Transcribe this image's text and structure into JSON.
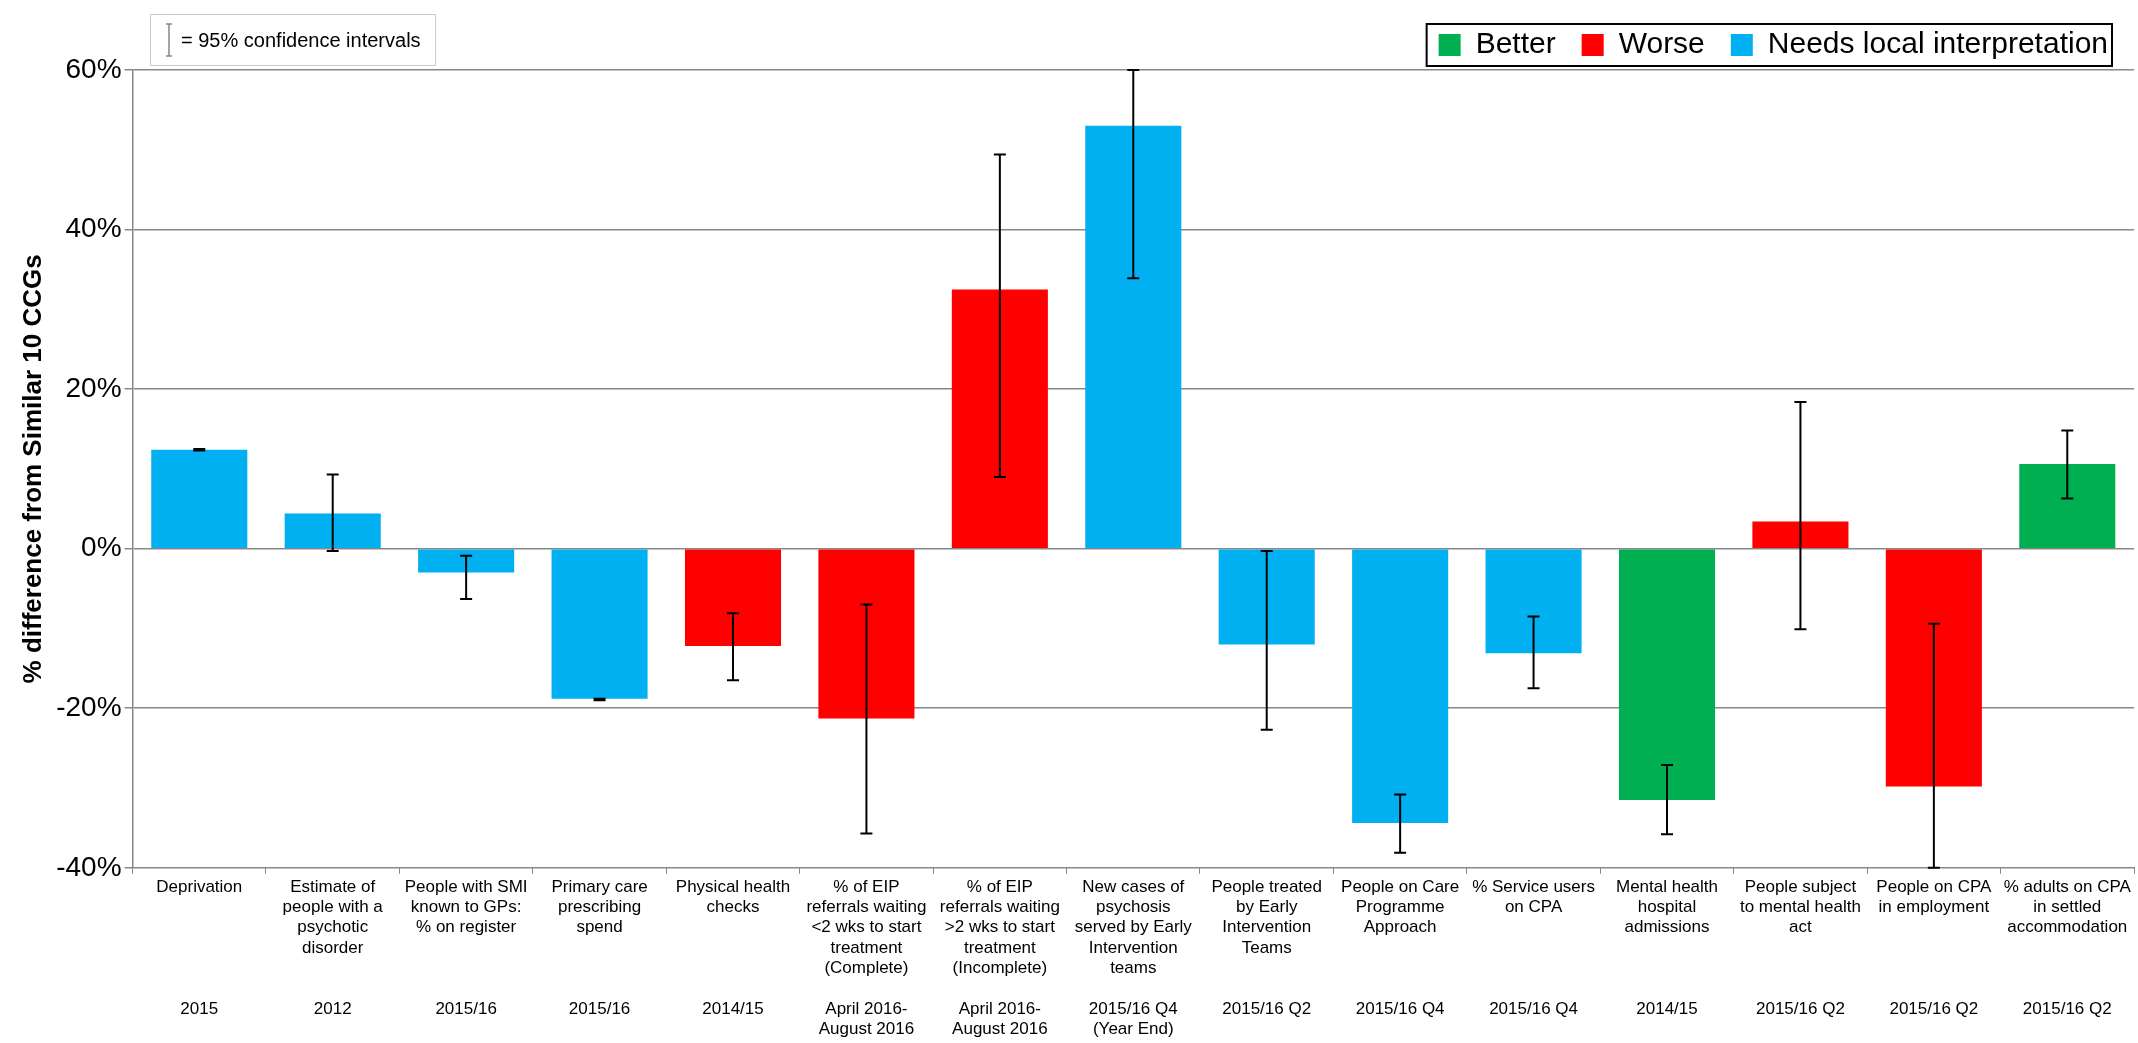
{
  "chart_data": {
    "type": "bar",
    "stacked": true,
    "ylabel": "% difference from Similar 10 CCGs",
    "annotations": [
      "= 95% confidence intervals"
    ],
    "categories": [
      "Deprivation\n2015",
      "Estimate of people with a psychotic disorder\n2012",
      "People with SMI known to GPs: % on register\n2015/16",
      "Primary care prescribing spend\n2015/16",
      "Physical health checks\n2014/15",
      "% of EIP referrals waiting <2 wks to start treatment (Complete)\nApril 2016-August 2016",
      "% of EIP referrals waiting >2 wks to start treatment (Incomplete)\nApril 2016-August 2016",
      "New cases of psychosis served by Early Intervention teams\n2015/16 Q4 (Year End)",
      "People treated by Early Intervention Teams\n2015/16 Q2",
      "People on Care Programme Approach\n2015/16 Q4",
      "% Service users on CPA\n2015/16 Q4",
      "Mental health hospital admissions\n2014/15",
      "People subject to mental health act\n2015/16 Q2",
      "People on CPA in employment\n2015/16 Q2",
      "% adults on CPA in settled accommodation\n2015/16 Q2"
    ],
    "series": [
      {
        "name": "Better",
        "color": "#00b050",
        "values": [
          null,
          null,
          null,
          null,
          null,
          null,
          null,
          null,
          null,
          null,
          null,
          -31.5,
          null,
          null,
          10.6
        ],
        "errors": [
          null,
          null,
          null,
          null,
          null,
          null,
          null,
          null,
          null,
          null,
          null,
          [
            -35.8,
            -27.1
          ],
          null,
          null,
          [
            6.3,
            14.8
          ]
        ]
      },
      {
        "name": "Worse",
        "color": "#ff0000",
        "values": [
          null,
          null,
          null,
          null,
          -12.2,
          -21.3,
          32.5,
          null,
          null,
          null,
          null,
          null,
          3.4,
          -29.8,
          null
        ],
        "errors": [
          null,
          null,
          null,
          null,
          [
            -16.5,
            -8.1
          ],
          [
            -35.7,
            -7.0
          ],
          [
            9.0,
            49.4
          ],
          null,
          null,
          null,
          null,
          null,
          [
            -10.1,
            18.4
          ],
          [
            -40,
            -9.4
          ],
          null
        ]
      },
      {
        "name": "Needs local interpretation",
        "color": "#00b0f0",
        "values": [
          12.4,
          4.4,
          -3.0,
          -18.8,
          null,
          null,
          null,
          53.0,
          -12.0,
          -34.4,
          -13.1,
          null,
          null,
          null,
          null
        ],
        "errors": [
          [
            12.3,
            12.5
          ],
          [
            -0.3,
            9.3
          ],
          [
            -6.3,
            -0.9
          ],
          [
            -19.0,
            -18.8
          ],
          null,
          null,
          null,
          [
            33.9,
            60
          ],
          [
            -22.7,
            -0.3
          ],
          [
            -38.1,
            -30.8
          ],
          [
            -17.5,
            -8.5
          ],
          null,
          null,
          null,
          null
        ]
      }
    ],
    "ylim": [
      -40,
      60
    ],
    "yticks": [
      {
        "value": -40,
        "label": "-40%"
      },
      {
        "value": -20,
        "label": "-20%"
      },
      {
        "value": 0,
        "label": "0%"
      },
      {
        "value": 20,
        "label": "20%"
      },
      {
        "value": 40,
        "label": "40%"
      },
      {
        "value": 60,
        "label": "60%"
      }
    ],
    "grid": "y",
    "legend": "top right"
  }
}
